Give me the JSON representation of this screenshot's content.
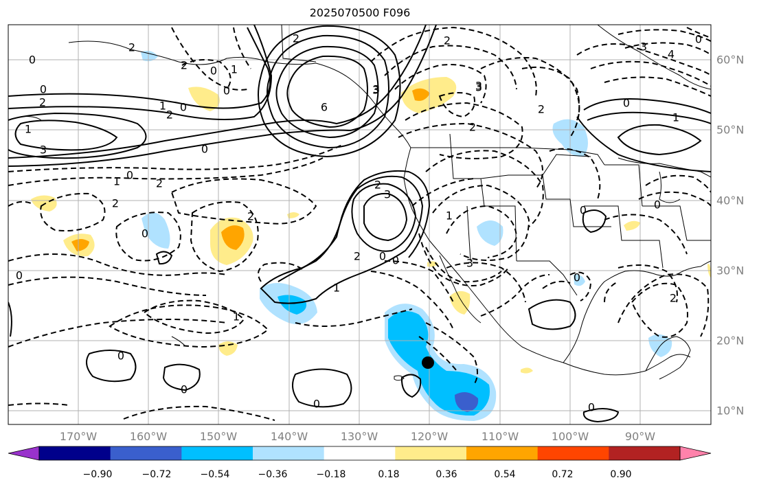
{
  "title": "2025070500 F096",
  "longitude_labels": [
    "170°W",
    "160°W",
    "150°W",
    "140°W",
    "130°W",
    "120°W",
    "110°W",
    "100°W",
    "90°W"
  ],
  "latitude_labels": [
    "60°N",
    "50°N",
    "40°N",
    "30°N",
    "20°N",
    "10°N"
  ],
  "colorbar": {
    "tick_labels": [
      "−0.90",
      "−0.72",
      "−0.54",
      "−0.36",
      "−0.18",
      "0.18",
      "0.36",
      "0.54",
      "0.72",
      "0.90"
    ],
    "colors": [
      "#9932cc",
      "#00008b",
      "#3a5fcd",
      "#00bfff",
      "#b0e2ff",
      "#ffffff",
      "#ffec8b",
      "#ffa500",
      "#ff4500",
      "#b22222",
      "#ff82ab"
    ]
  },
  "contour_labels": [
    "0",
    "2",
    "1",
    "2",
    "3",
    "2",
    "0",
    "1",
    "0",
    "6",
    "3",
    "2",
    "3",
    "2",
    "1",
    "0",
    "2",
    "0",
    "2",
    "1",
    "0",
    "2",
    "3",
    "2",
    "0",
    "1",
    "3",
    "3",
    "2",
    "0",
    "0",
    "1",
    "0",
    "0",
    "0",
    "0",
    "1",
    "2",
    "0",
    "0",
    "0",
    "0",
    "0",
    "3",
    "2",
    "1",
    "0",
    "4",
    "3",
    "2",
    "0",
    "2"
  ],
  "marker": {
    "type": "storm-center-dot",
    "lon": -120.5,
    "lat": 17
  }
}
